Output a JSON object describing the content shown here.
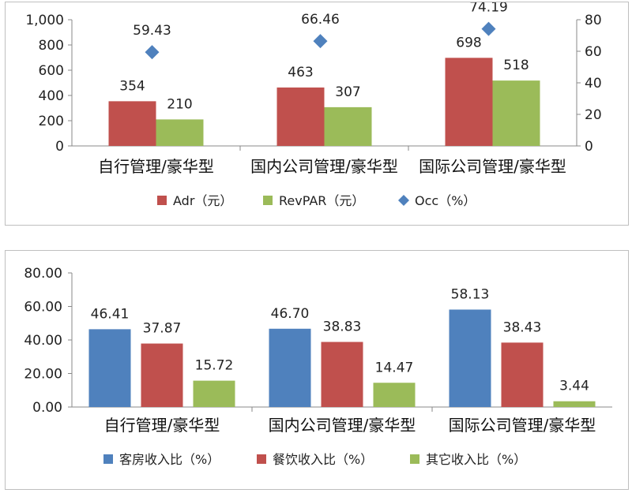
{
  "chart_data": [
    {
      "type": "bar",
      "categories": [
        "自行管理/豪华型",
        "国内公司管理/豪华型",
        "国际公司管理/豪华型"
      ],
      "series": [
        {
          "name": "Adr（元）",
          "kind": "bar",
          "axis": "left",
          "color": "#c0504d",
          "values": [
            354,
            463,
            698
          ]
        },
        {
          "name": "RevPAR（元）",
          "kind": "bar",
          "axis": "left",
          "color": "#9bbb59",
          "values": [
            210,
            307,
            518
          ]
        },
        {
          "name": "Occ（%）",
          "kind": "marker",
          "axis": "right",
          "color": "#4f81bd",
          "values": [
            59.43,
            66.46,
            74.19
          ]
        }
      ],
      "value_labels": [
        [
          "354",
          "463",
          "698"
        ],
        [
          "210",
          "307",
          "518"
        ],
        [
          "59.43",
          "66.46",
          "74.19"
        ]
      ],
      "yticks_left": [
        "0",
        "200",
        "400",
        "600",
        "800",
        "1,000"
      ],
      "yticks_right": [
        "0",
        "20",
        "40",
        "60",
        "80"
      ],
      "ylim_left": [
        0,
        1000
      ],
      "ylim_right": [
        0,
        80
      ],
      "legend_position": "bottom",
      "grid": false
    },
    {
      "type": "bar",
      "categories": [
        "自行管理/豪华型",
        "国内公司管理/豪华型",
        "国际公司管理/豪华型"
      ],
      "series": [
        {
          "name": "客房收入比（%）",
          "kind": "bar",
          "color": "#4f81bd",
          "values": [
            46.41,
            46.7,
            58.13
          ]
        },
        {
          "name": "餐饮收入比（%）",
          "kind": "bar",
          "color": "#c0504d",
          "values": [
            37.87,
            38.83,
            38.43
          ]
        },
        {
          "name": "其它收入比（%）",
          "kind": "bar",
          "color": "#9bbb59",
          "values": [
            15.72,
            14.47,
            3.44
          ]
        }
      ],
      "value_labels": [
        [
          "46.41",
          "46.70",
          "58.13"
        ],
        [
          "37.87",
          "38.83",
          "38.43"
        ],
        [
          "15.72",
          "14.47",
          "3.44"
        ]
      ],
      "yticks": [
        "0.00",
        "20.00",
        "40.00",
        "60.00",
        "80.00"
      ],
      "ylim": [
        0,
        80
      ],
      "legend_position": "bottom",
      "grid": false
    }
  ]
}
